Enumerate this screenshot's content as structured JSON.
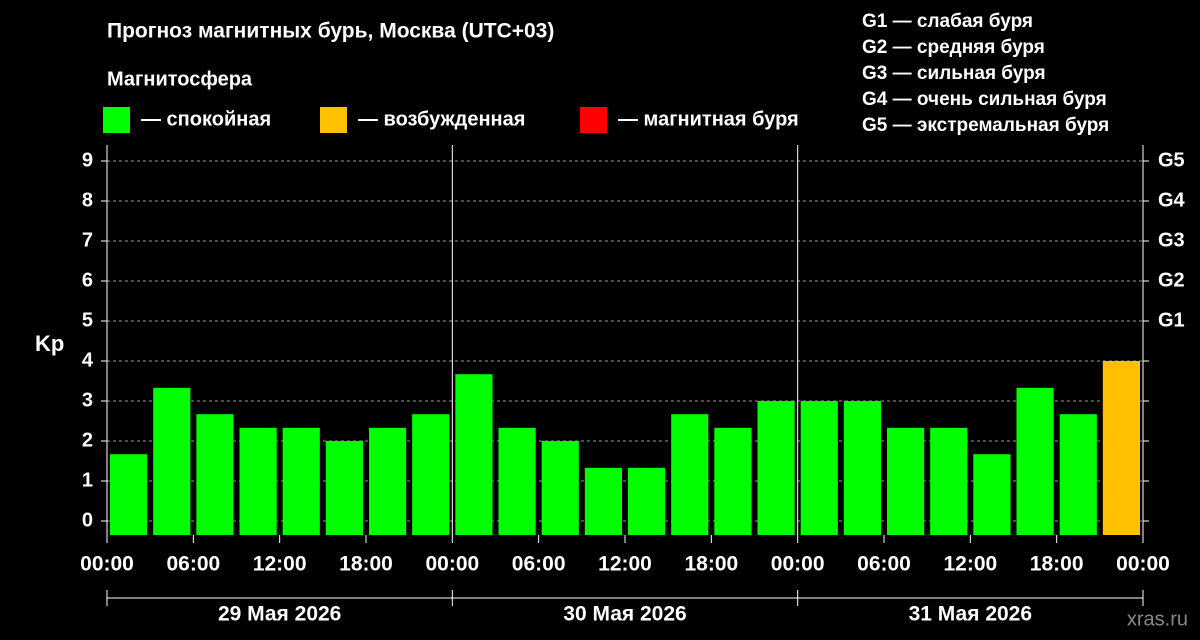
{
  "chart_data": {
    "type": "bar",
    "title": "Прогноз магнитных бурь, Москва (UTC+03)",
    "legend_title": "Магнитосфера",
    "legend": [
      {
        "label": "— спокойная",
        "color": "#00ff00"
      },
      {
        "label": "— возбужденная",
        "color": "#ffc000"
      },
      {
        "label": "— магнитная буря",
        "color": "#ff0000"
      }
    ],
    "scale_legend": [
      "G1 — слабая буря",
      "G2 — средняя буря",
      "G3 — сильная буря",
      "G4 — очень сильная буря",
      "G5 — экстремальная буря"
    ],
    "ylabel": "Kp",
    "x": [
      0,
      3,
      6,
      9,
      12,
      15,
      18,
      21,
      24,
      27,
      30,
      33,
      36,
      39,
      42,
      45,
      48,
      51,
      54,
      57,
      60,
      63,
      66,
      69
    ],
    "values": [
      1.67,
      3.33,
      2.67,
      2.33,
      2.33,
      2,
      2.33,
      2.67,
      3.67,
      2.33,
      2,
      1.33,
      1.33,
      2.67,
      2.33,
      3,
      3,
      3,
      2.33,
      2.33,
      1.67,
      3.33,
      2.67,
      4
    ],
    "colors": [
      "#00ff00",
      "#00ff00",
      "#00ff00",
      "#00ff00",
      "#00ff00",
      "#00ff00",
      "#00ff00",
      "#00ff00",
      "#00ff00",
      "#00ff00",
      "#00ff00",
      "#00ff00",
      "#00ff00",
      "#00ff00",
      "#00ff00",
      "#00ff00",
      "#00ff00",
      "#00ff00",
      "#00ff00",
      "#00ff00",
      "#00ff00",
      "#00ff00",
      "#00ff00",
      "#ffc000"
    ],
    "xlim": [
      0,
      72
    ],
    "xticks": [
      {
        "value": 0,
        "label": "00:00"
      },
      {
        "value": 6,
        "label": "06:00"
      },
      {
        "value": 12,
        "label": "12:00"
      },
      {
        "value": 18,
        "label": "18:00"
      },
      {
        "value": 24,
        "label": "00:00"
      },
      {
        "value": 30,
        "label": "06:00"
      },
      {
        "value": 36,
        "label": "12:00"
      },
      {
        "value": 42,
        "label": "18:00"
      },
      {
        "value": 48,
        "label": "00:00"
      },
      {
        "value": 54,
        "label": "06:00"
      },
      {
        "value": 60,
        "label": "12:00"
      },
      {
        "value": 66,
        "label": "18:00"
      },
      {
        "value": 72,
        "label": "00:00"
      }
    ],
    "day_labels": [
      "29 Мая 2026",
      "30 Мая 2026",
      "31 Мая 2026"
    ],
    "ylim": [
      -0.35,
      9.4
    ],
    "yticks": [
      0,
      1,
      2,
      3,
      4,
      5,
      6,
      7,
      8,
      9
    ],
    "y2lim": [
      -0.35,
      9.4
    ],
    "y2ticks": [
      {
        "value": 5,
        "label": "G1"
      },
      {
        "value": 6,
        "label": "G2"
      },
      {
        "value": 7,
        "label": "G3"
      },
      {
        "value": 8,
        "label": "G4"
      },
      {
        "value": 9,
        "label": "G5"
      }
    ],
    "grid": true,
    "watermark": "xras.ru"
  }
}
